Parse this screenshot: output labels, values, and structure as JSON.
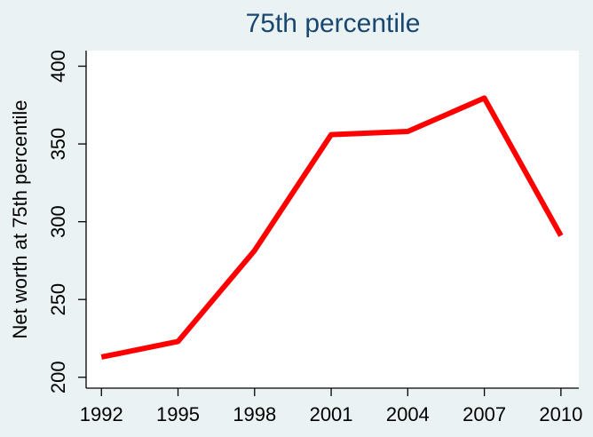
{
  "chart_data": {
    "type": "line",
    "title": "75th percentile",
    "y_label": "Net worth at 75th percentile",
    "x": [
      1992,
      1995,
      1998,
      2001,
      2004,
      2007,
      2010
    ],
    "series": [
      {
        "name": "Net worth at 75th percentile",
        "color": "#ff0000",
        "values": [
          213,
          223,
          281.5,
          356,
          358,
          379.5,
          291
        ]
      }
    ],
    "xlim": [
      1991.4,
      2010.7
    ],
    "xticks": [
      1992,
      1995,
      1998,
      2001,
      2004,
      2007,
      2010
    ],
    "ylim": [
      193,
      410
    ],
    "yticks": [
      200,
      250,
      300,
      350,
      400
    ],
    "grid": false
  }
}
